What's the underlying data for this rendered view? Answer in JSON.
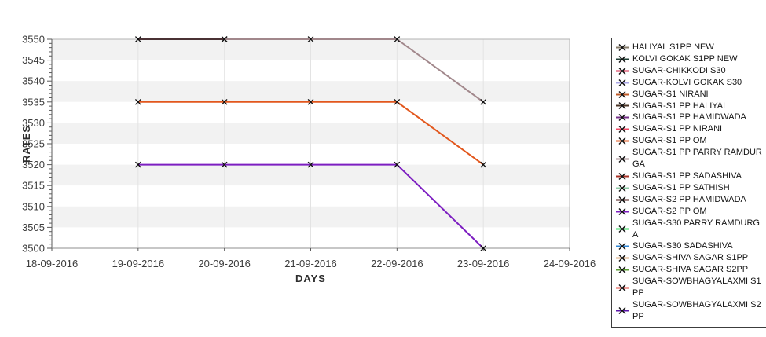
{
  "page": {
    "background": "#ffffff"
  },
  "chart_data": {
    "type": "line",
    "title": "",
    "xlabel": "DAYS",
    "ylabel": "RATES",
    "x_tick_labels": [
      "18-09-2016",
      "19-09-2016",
      "20-09-2016",
      "21-09-2016",
      "22-09-2016",
      "23-09-2016",
      "24-09-2016"
    ],
    "ylim": [
      3500,
      3550
    ],
    "y_tick_step": 5,
    "y_minor_tick_step": 1,
    "grid": true,
    "legend_position": "right-outside",
    "marker": {
      "shape": "x",
      "color": "#0f0f0f"
    },
    "visible_lines": [
      {
        "name": "top-line-early-dark-segment",
        "color": "#4a3134",
        "x": [
          "19-09-2016",
          "20-09-2016"
        ],
        "y": [
          3550,
          3550
        ]
      },
      {
        "name": "top-line-rosy",
        "color": "#a1878b",
        "x": [
          "20-09-2016",
          "21-09-2016",
          "22-09-2016",
          "23-09-2016"
        ],
        "y": [
          3550,
          3550,
          3550,
          3535
        ]
      },
      {
        "name": "middle-line-orange",
        "color": "#e2571d",
        "x": [
          "19-09-2016",
          "20-09-2016",
          "21-09-2016",
          "22-09-2016",
          "23-09-2016"
        ],
        "y": [
          3535,
          3535,
          3535,
          3535,
          3520
        ]
      },
      {
        "name": "bottom-line-purple",
        "color": "#7d1fc1",
        "x": [
          "19-09-2016",
          "20-09-2016",
          "21-09-2016",
          "22-09-2016",
          "23-09-2016"
        ],
        "y": [
          3520,
          3520,
          3520,
          3520,
          3500
        ]
      }
    ]
  },
  "plot_style": {
    "band_color": "#f2f2f2",
    "grid_color": "#e3e3e3",
    "frame_color": "#b3b3b3",
    "axis_color": "#5a5a5a",
    "x_axis_line_color": "#8f8f8f",
    "tick_label_color": "#3d3d3d",
    "axis_title_color": "#2e2e2e"
  },
  "legend": {
    "border_color": "#3c3c3c",
    "items": [
      {
        "label": "HALIYAL S1PP NEW",
        "color": "#857b6a"
      },
      {
        "label": "KOLVI GOKAK S1PP NEW",
        "color": "#1d3d32"
      },
      {
        "label": "SUGAR-CHIKKODI S30",
        "color": "#d42045"
      },
      {
        "label": "SUGAR-KOLVI GOKAK S30",
        "color": "#a9a6e6"
      },
      {
        "label": "SUGAR-S1 NIRANI",
        "color": "#bf5b28"
      },
      {
        "label": "SUGAR-S1 PP HALIYAL",
        "color": "#4a3426"
      },
      {
        "label": "SUGAR-S1 PP HAMIDWADA",
        "color": "#76308a"
      },
      {
        "label": "SUGAR-S1 PP NIRANI",
        "color": "#ef4a64"
      },
      {
        "label": "SUGAR-S1 PP OM",
        "color": "#e2571d"
      },
      {
        "label": "SUGAR-S1 PP PARRY RAMDURGA",
        "color": "#a1878b"
      },
      {
        "label": "SUGAR-S1 PP SADASHIVA",
        "color": "#a93226"
      },
      {
        "label": "SUGAR-S1 PP SATHISH",
        "color": "#8ecaa5"
      },
      {
        "label": "SUGAR-S2 PP HAMIDWADA",
        "color": "#44100f"
      },
      {
        "label": "SUGAR-S2 PP OM",
        "color": "#7d1fc1"
      },
      {
        "label": "SUGAR-S30 PARRY RAMDURGA",
        "color": "#2fd95a"
      },
      {
        "label": "SUGAR-S30 SADASHIVA",
        "color": "#2e86d6"
      },
      {
        "label": "SUGAR-SHIVA SAGAR S1PP",
        "color": "#d8a576"
      },
      {
        "label": "SUGAR-SHIVA SAGAR S2PP",
        "color": "#579b2e"
      },
      {
        "label": "SUGAR-SOWBHAGYALAXMI S1PP",
        "color": "#e04238"
      },
      {
        "label": "SUGAR-SOWBHAGYALAXMI S2PP",
        "color": "#5a14a8"
      }
    ]
  }
}
